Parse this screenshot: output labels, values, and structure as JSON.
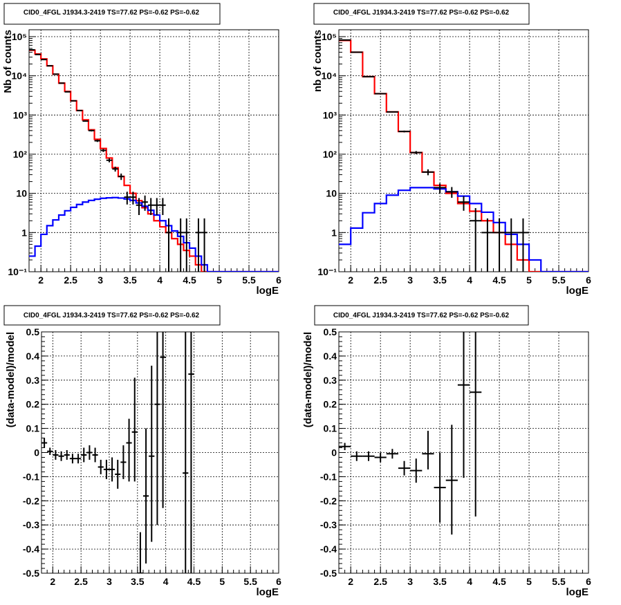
{
  "chart_data": [
    {
      "type": "histogram",
      "title": "CID0_4FGL J1934.3-2419 TS=77.62 PS=-0.62 PS=-0.62",
      "xlabel": "logE",
      "ylabel": "Nb of counts",
      "xlim": [
        1.8,
        6.0
      ],
      "ylim": [
        0.1,
        150000
      ],
      "yscale": "log",
      "grid": true,
      "xticks": [
        "2",
        "2.5",
        "3",
        "3.5",
        "4",
        "4.5",
        "5",
        "5.5",
        "6"
      ],
      "yticks": [
        "10⁻¹",
        "1",
        "10",
        "10²",
        "10³",
        "10⁴",
        "10⁵"
      ],
      "bin_edges": [
        1.8,
        1.9,
        2.0,
        2.1,
        2.2,
        2.3,
        2.4,
        2.5,
        2.6,
        2.7,
        2.8,
        2.9,
        3.0,
        3.1,
        3.2,
        3.3,
        3.4,
        3.5,
        3.6,
        3.7,
        3.8,
        3.9,
        4.0,
        4.1,
        4.2,
        4.3,
        4.4,
        4.5,
        4.6,
        4.7,
        4.8,
        4.9,
        5.0,
        5.1,
        5.2,
        5.3,
        5.4,
        5.5,
        5.6,
        5.7,
        5.8,
        5.9,
        6.0
      ],
      "series": [
        {
          "name": "",
          "kind": "step",
          "color": "#ff0000",
          "values": [
            45000,
            36000,
            27000,
            18000,
            11000,
            6500,
            4000,
            2300,
            1300,
            750,
            420,
            240,
            140,
            80,
            45,
            27,
            16,
            10,
            6.5,
            4.3,
            3.0,
            2.0,
            1.4,
            1.0,
            0.7,
            0.5,
            0.35,
            0.25,
            0.15,
            0.1,
            0.1,
            0.1,
            0.1,
            0.1,
            0.1,
            0.1,
            0.1,
            0.1,
            0.1,
            0.1,
            0.1,
            0.1
          ]
        },
        {
          "name": "",
          "kind": "step",
          "color": "#0000ff",
          "values": [
            0.25,
            0.45,
            0.9,
            1.5,
            2.1,
            2.8,
            3.6,
            4.4,
            5.2,
            6.0,
            6.6,
            7.1,
            7.5,
            7.7,
            7.8,
            7.6,
            7.2,
            6.6,
            5.7,
            4.7,
            3.7,
            2.8,
            2.0,
            1.5,
            1.1,
            0.8,
            0.55,
            0.4,
            0.25,
            0.15,
            0.1,
            0.1,
            0.1,
            0.1,
            0.1,
            0.1,
            0.1,
            0.1,
            0.1,
            0.1,
            0.1,
            0.1
          ]
        },
        {
          "name": "",
          "kind": "errorbar",
          "color": "#000000",
          "x": [
            1.85,
            1.95,
            2.05,
            2.15,
            2.25,
            2.35,
            2.45,
            2.55,
            2.65,
            2.75,
            2.85,
            2.95,
            3.05,
            3.15,
            3.25,
            3.35,
            3.45,
            3.55,
            3.65,
            3.75,
            3.85,
            3.95,
            4.05,
            4.15,
            4.35,
            4.45,
            4.65,
            4.75
          ],
          "y": [
            46000,
            35000,
            26000,
            18000,
            11000,
            6500,
            3900,
            2300,
            1300,
            700,
            400,
            220,
            125,
            70,
            42,
            27,
            8,
            8,
            5,
            6,
            5,
            5,
            5,
            1,
            1,
            1,
            1,
            1
          ],
          "ylo": [
            45600,
            34800,
            25840,
            17870,
            10900,
            6420,
            3840,
            2250,
            1260,
            675,
            380,
            205,
            114,
            62,
            36,
            22,
            5.2,
            5.2,
            2.8,
            3.6,
            2.8,
            2.8,
            2.8,
            0.1,
            0.1,
            0.1,
            0.1,
            0.1
          ],
          "yhi": [
            46400,
            35200,
            26160,
            18130,
            11100,
            6580,
            3960,
            2350,
            1340,
            725,
            420,
            235,
            136,
            78,
            48,
            32,
            11,
            11,
            7.6,
            8.8,
            7.6,
            7.6,
            7.6,
            2.3,
            2.3,
            2.3,
            2.3,
            2.3
          ]
        }
      ]
    },
    {
      "type": "histogram",
      "title": "CID0_4FGL J1934.3-2419 TS=77.62 PS=-0.62 PS=-0.62",
      "xlabel": "logE",
      "ylabel": "nb of counts",
      "xlim": [
        1.8,
        6.0
      ],
      "ylim": [
        0.1,
        150000
      ],
      "yscale": "log",
      "grid": true,
      "xticks": [
        "2",
        "2.5",
        "3",
        "3.5",
        "4",
        "4.5",
        "5",
        "5.5",
        "6"
      ],
      "yticks": [
        "10⁻¹",
        "1",
        "10",
        "10²",
        "10³",
        "10⁴",
        "10⁵"
      ],
      "bin_edges": [
        1.8,
        2.0,
        2.2,
        2.4,
        2.6,
        2.8,
        3.0,
        3.2,
        3.4,
        3.6,
        3.8,
        4.0,
        4.2,
        4.4,
        4.6,
        4.8,
        5.0,
        5.2,
        5.4,
        5.6,
        5.8,
        6.0
      ],
      "series": [
        {
          "name": "",
          "kind": "step",
          "color": "#ff0000",
          "values": [
            80000,
            40000,
            9500,
            3500,
            1200,
            380,
            110,
            35,
            16,
            10,
            5.5,
            3.5,
            2.0,
            1.0,
            0.5,
            0.2,
            0.1,
            0.1,
            0.1,
            0.1,
            0.1
          ]
        },
        {
          "name": "",
          "kind": "step",
          "color": "#0000ff",
          "values": [
            0.5,
            1.3,
            3.2,
            5.5,
            9.0,
            12.0,
            14.0,
            14.0,
            13.0,
            11.0,
            8.5,
            5.5,
            3.3,
            1.8,
            0.9,
            0.5,
            0.2,
            0.1,
            0.1,
            0.1,
            0.1
          ]
        },
        {
          "name": "",
          "kind": "errorbar",
          "color": "#000000",
          "x": [
            1.9,
            2.1,
            2.3,
            2.5,
            2.7,
            2.9,
            3.1,
            3.3,
            3.5,
            3.7,
            3.9,
            4.1,
            4.3,
            4.5,
            4.7,
            4.9
          ],
          "y": [
            82000,
            40000,
            9500,
            3500,
            1200,
            380,
            110,
            35,
            14,
            11,
            6,
            2,
            1,
            1,
            1,
            1
          ],
          "ylo": [
            81700,
            39800,
            9400,
            3440,
            1165,
            360,
            100,
            29,
            10,
            7.7,
            3.6,
            0.1,
            0.1,
            0.1,
            0.1,
            0.1
          ],
          "yhi": [
            82300,
            40200,
            9600,
            3560,
            1235,
            400,
            120,
            41,
            18,
            14.5,
            8.5,
            4.2,
            2.3,
            2.3,
            2.3,
            2.3
          ]
        }
      ]
    },
    {
      "type": "scatter",
      "title": "CID0_4FGL J1934.3-2419 TS=77.62 PS=-0.62 PS=-0.62",
      "xlabel": "logE",
      "ylabel": "(data-model)/model",
      "xlim": [
        1.8,
        6.0
      ],
      "ylim": [
        -0.5,
        0.5
      ],
      "yscale": "linear",
      "grid": true,
      "xticks": [
        "2",
        "2.5",
        "3",
        "3.5",
        "4",
        "4.5",
        "5",
        "5.5",
        "6"
      ],
      "yticks": [
        "-0.5",
        "-0.4",
        "-0.3",
        "-0.2",
        "-0.1",
        "0",
        "0.1",
        "0.2",
        "0.3",
        "0.4",
        "0.5"
      ],
      "series": [
        {
          "name": "",
          "kind": "errorbar",
          "color": "#000000",
          "xerr": 0.05,
          "x": [
            1.85,
            1.95,
            2.05,
            2.15,
            2.25,
            2.35,
            2.45,
            2.55,
            2.65,
            2.75,
            2.85,
            2.95,
            3.05,
            3.15,
            3.25,
            3.35,
            3.45,
            3.55,
            3.65,
            3.75,
            3.85,
            3.95,
            4.35,
            4.45
          ],
          "y": [
            0.04,
            0.005,
            -0.01,
            -0.015,
            -0.01,
            -0.025,
            -0.025,
            -0.01,
            0.0,
            -0.01,
            -0.06,
            -0.07,
            -0.07,
            -0.09,
            -0.04,
            0.04,
            0.085,
            -0.5,
            -0.18,
            -0.015,
            0.2,
            0.395,
            -0.085,
            0.325
          ],
          "ylo": [
            0.02,
            -0.01,
            -0.03,
            -0.035,
            -0.03,
            -0.045,
            -0.045,
            -0.04,
            -0.03,
            -0.04,
            -0.09,
            -0.11,
            -0.12,
            -0.15,
            -0.11,
            -0.12,
            -0.12,
            -0.5,
            -0.46,
            -0.37,
            -0.3,
            -0.23,
            -0.5,
            -0.5
          ],
          "yhi": [
            0.06,
            0.02,
            0.01,
            0.005,
            0.01,
            -0.005,
            -0.005,
            0.02,
            0.03,
            0.02,
            -0.03,
            -0.03,
            -0.02,
            -0.03,
            0.03,
            0.14,
            0.31,
            -0.33,
            0.1,
            0.36,
            0.5,
            0.5,
            0.5,
            0.5
          ]
        }
      ]
    },
    {
      "type": "scatter",
      "title": "CID0_4FGL J1934.3-2419 TS=77.62 PS=-0.62 PS=-0.62",
      "xlabel": "logE",
      "ylabel": "(data-model)/model",
      "xlim": [
        1.8,
        6.0
      ],
      "ylim": [
        -0.5,
        0.5
      ],
      "yscale": "linear",
      "grid": true,
      "xticks": [
        "2",
        "2.5",
        "3",
        "3.5",
        "4",
        "4.5",
        "5",
        "5.5",
        "6"
      ],
      "yticks": [
        "-0.5",
        "-0.4",
        "-0.3",
        "-0.2",
        "-0.1",
        "0",
        "0.1",
        "0.2",
        "0.3",
        "0.4",
        "0.5"
      ],
      "series": [
        {
          "name": "",
          "kind": "errorbar",
          "color": "#000000",
          "xerr": 0.1,
          "x": [
            1.9,
            2.1,
            2.3,
            2.5,
            2.7,
            2.9,
            3.1,
            3.3,
            3.5,
            3.7,
            3.9,
            4.1
          ],
          "y": [
            0.025,
            -0.015,
            -0.015,
            -0.02,
            -0.005,
            -0.065,
            -0.075,
            -0.005,
            -0.145,
            -0.115,
            0.28,
            0.25
          ],
          "ylo": [
            0.01,
            -0.035,
            -0.035,
            -0.04,
            -0.025,
            -0.095,
            -0.125,
            -0.07,
            -0.29,
            -0.34,
            -0.105,
            -0.265
          ],
          "yhi": [
            0.04,
            0.005,
            0.005,
            0.0,
            0.015,
            -0.035,
            -0.025,
            0.09,
            0.0,
            0.115,
            0.5,
            0.5
          ]
        }
      ]
    }
  ]
}
